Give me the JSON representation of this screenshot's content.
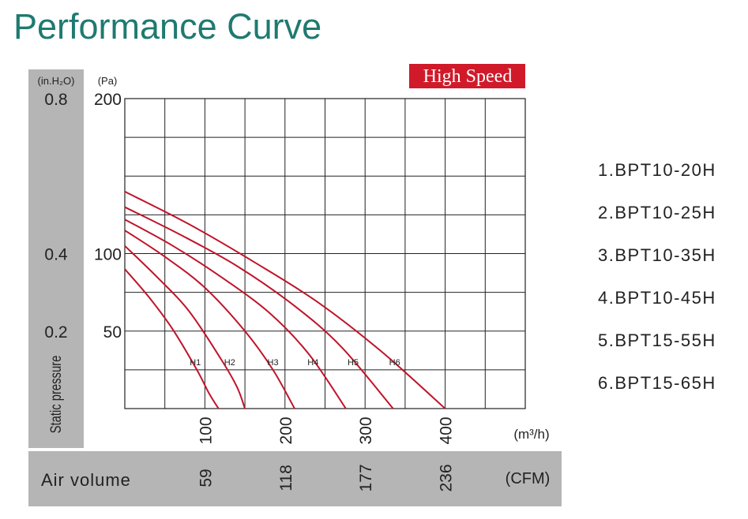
{
  "page": {
    "title": "Performance Curve",
    "models": [
      "1.BPT10-20H",
      "2.BPT10-25H",
      "3.BPT10-35H",
      "4.BPT10-45H",
      "5.BPT15-55H",
      "6.BPT15-65H"
    ]
  },
  "chart_data": {
    "type": "line",
    "title": "Performance Curve",
    "badge": "High Speed",
    "colors": {
      "curve": "#c0142a",
      "badge_bg": "#d01a2a",
      "panel": "#b5b5b5",
      "grid": "#222222",
      "title": "#1f7a70"
    },
    "xlabel": "Air volume",
    "ylabel": "Static pressure",
    "x_unit": "(m³/h)",
    "x_unit2": "(CFM)",
    "y_unit_inh2o": "(in.H₂O)",
    "y_unit_pa": "(Pa)",
    "xlim": [
      0,
      500
    ],
    "ylim": [
      0,
      200
    ],
    "grid": true,
    "x_ticks": [
      100,
      200,
      300,
      400
    ],
    "x_tick_labels": [
      "100",
      "200",
      "300",
      "400"
    ],
    "cfm_ticks": [
      100,
      200,
      300,
      400
    ],
    "cfm_tick_labels": [
      "59",
      "118",
      "177",
      "236"
    ],
    "y_ticks_pa": [
      200,
      100,
      50
    ],
    "y_tick_labels_pa": [
      "200",
      "100",
      "50"
    ],
    "y_ticks_inh2o": [
      200,
      100,
      50
    ],
    "y_tick_labels_inh2o": [
      "0.8",
      "0.4",
      "0.2"
    ],
    "series": [
      {
        "name": "H1",
        "label_at": [
          88,
          30
        ],
        "x": [
          0,
          30,
          60,
          90,
          105,
          117
        ],
        "y": [
          90,
          72,
          51,
          25,
          10,
          0
        ]
      },
      {
        "name": "H2",
        "label_at": [
          131,
          30
        ],
        "x": [
          0,
          40,
          80,
          120,
          140,
          150
        ],
        "y": [
          105,
          85,
          63,
          32,
          14,
          0
        ]
      },
      {
        "name": "H3",
        "label_at": [
          185,
          30
        ],
        "x": [
          0,
          50,
          100,
          150,
          185,
          212
        ],
        "y": [
          115,
          98,
          78,
          50,
          25,
          0
        ]
      },
      {
        "name": "H4",
        "label_at": [
          235,
          30
        ],
        "x": [
          0,
          60,
          120,
          180,
          230,
          276
        ],
        "y": [
          122,
          105,
          85,
          62,
          35,
          0
        ]
      },
      {
        "name": "H5",
        "label_at": [
          285,
          30
        ],
        "x": [
          0,
          70,
          140,
          210,
          270,
          335
        ],
        "y": [
          130,
          112,
          92,
          67,
          40,
          0
        ]
      },
      {
        "name": "H6",
        "label_at": [
          337,
          30
        ],
        "x": [
          0,
          80,
          160,
          240,
          320,
          400
        ],
        "y": [
          140,
          119,
          95,
          69,
          37,
          0
        ]
      }
    ]
  }
}
